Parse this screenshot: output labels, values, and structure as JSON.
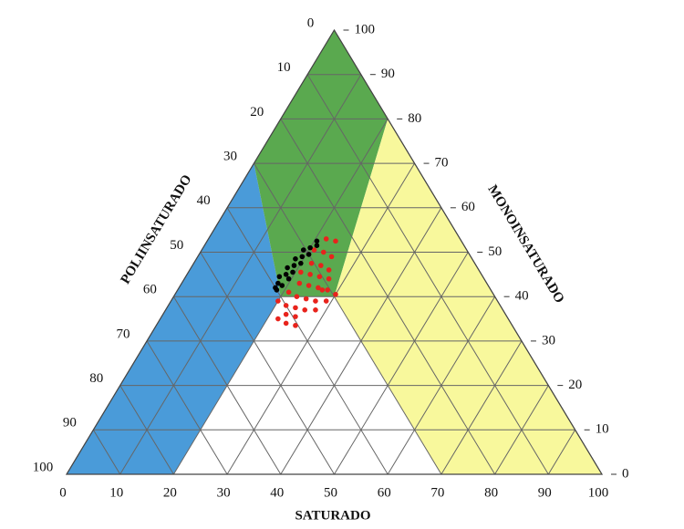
{
  "chart_data": {
    "type": "ternary",
    "axes": {
      "saturado": {
        "label": "SATURADO",
        "ticks": [
          0,
          10,
          20,
          30,
          40,
          50,
          60,
          70,
          80,
          90,
          100
        ]
      },
      "monoinsaturado": {
        "label": "MONOINSATURADO",
        "ticks": [
          0,
          10,
          20,
          30,
          40,
          50,
          60,
          70,
          80,
          90,
          100
        ]
      },
      "poliinsaturado": {
        "label": "POLIINSATURADO",
        "ticks": [
          0,
          10,
          20,
          30,
          40,
          50,
          60,
          70,
          80,
          90,
          100
        ]
      }
    },
    "series": [
      {
        "color": "#e8231c",
        "saturado": [
          22,
          24,
          21,
          23,
          25,
          22,
          24,
          26,
          21,
          23,
          25,
          27,
          22,
          24,
          26,
          28,
          21,
          23,
          25,
          27,
          29,
          22,
          24,
          26,
          28,
          23,
          25,
          24,
          26,
          20,
          30,
          27,
          22
        ],
        "monoinsaturado": [
          53,
          52.5,
          50.5,
          50,
          49,
          47.5,
          47,
          46,
          45.5,
          45,
          44.5,
          44,
          43,
          42.5,
          42,
          41.5,
          41,
          40,
          39.5,
          39,
          39,
          38,
          37.5,
          37,
          37,
          36,
          35.5,
          34,
          33.5,
          39,
          40.5,
          41.5,
          35
        ]
      },
      {
        "color": "#000000",
        "saturado": [
          18.5,
          19,
          18,
          19.5,
          18.5,
          19.5,
          18,
          19,
          20,
          18.5,
          19.5,
          20.5,
          19,
          20,
          21,
          20.5,
          17.5,
          18
        ],
        "monoinsaturado": [
          41.5,
          42.5,
          43,
          44,
          45,
          45.5,
          46.5,
          47,
          47.5,
          48.5,
          49,
          49.5,
          50.5,
          51,
          51.5,
          52.5,
          44.5,
          42
        ]
      }
    ]
  }
}
